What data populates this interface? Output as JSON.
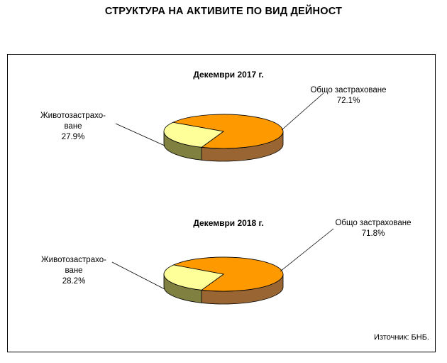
{
  "title": "СТРУКТУРА НА АКТИВИТЕ ПО ВИД ДЕЙНОСТ",
  "source": "Източник: БНБ.",
  "colors": {
    "general_top": "#ff9900",
    "general_side": "#996633",
    "life_top": "#ffff99",
    "life_side": "#808040"
  },
  "chart_data": [
    {
      "type": "pie",
      "title": "Декември 2017 г.",
      "slices": [
        {
          "label_line1": "Общо застраховане",
          "label_line2": "",
          "value": 72.1,
          "value_label": "72.1%"
        },
        {
          "label_line1": "Животозастрахо-",
          "label_line2": "ване",
          "value": 27.9,
          "value_label": "27.9%"
        }
      ]
    },
    {
      "type": "pie",
      "title": "Декември 2018 г.",
      "slices": [
        {
          "label_line1": "Общо застраховане",
          "label_line2": "",
          "value": 71.8,
          "value_label": "71.8%"
        },
        {
          "label_line1": "Животозастрахо-",
          "label_line2": "ване",
          "value": 28.2,
          "value_label": "28.2%"
        }
      ]
    }
  ]
}
